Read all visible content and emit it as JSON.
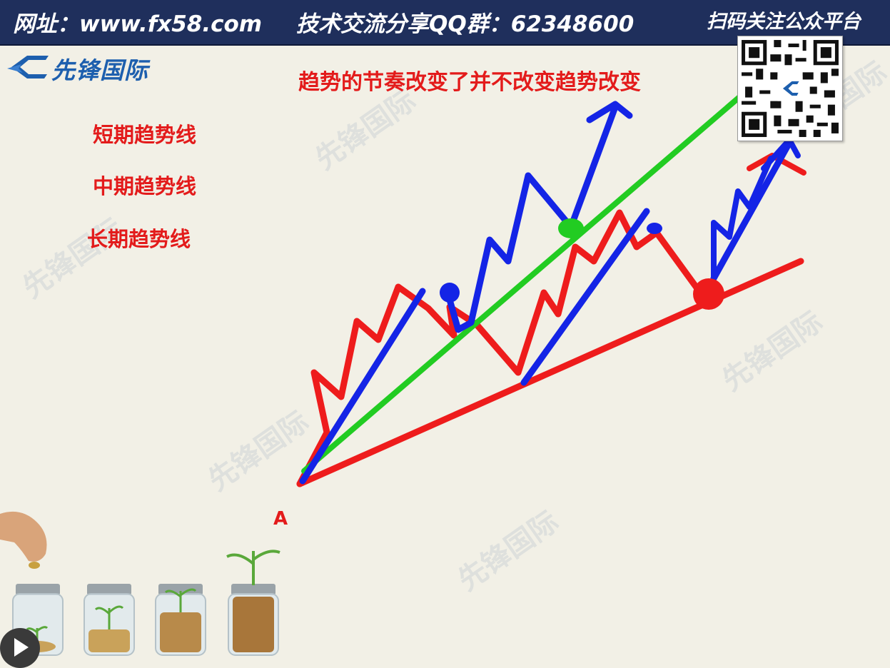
{
  "header": {
    "site": "网址：www.fx58.com",
    "qq_group": "技术交流分享QQ群：62348600",
    "scan": "扫码关注公众平台"
  },
  "logo": {
    "text": "先锋国际",
    "icon": "fx-logo-icon",
    "color": "#1d5fae"
  },
  "title": "趋势的节奏改变了并不改变趋势改变",
  "legend": {
    "short": "短期趋势线",
    "mid": "中期趋势线",
    "long": "长期趋势线"
  },
  "point_label": "A",
  "watermark": "先锋国际",
  "colors": {
    "red": "#ee1c1c",
    "blue": "#1424e6",
    "green": "#22cc22",
    "header": "#1f2f5c",
    "text_red": "#e31b1b"
  },
  "icons": [
    "qr-code-icon",
    "money-jar-icon",
    "hand-coin-icon",
    "play-icon"
  ]
}
